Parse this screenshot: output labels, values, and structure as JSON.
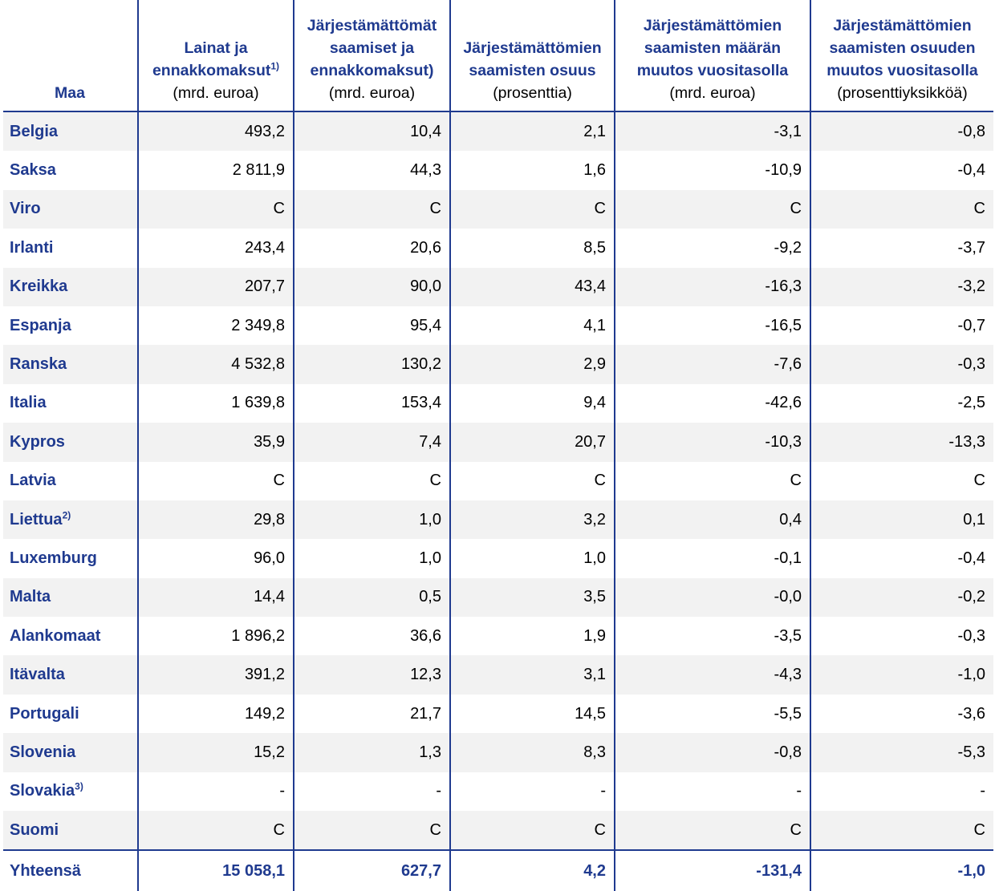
{
  "table": {
    "headers": [
      {
        "title": "Maa",
        "sup": "",
        "unit": ""
      },
      {
        "title": "Lainat ja ennakkomaksut",
        "sup": "1)",
        "unit": "(mrd. euroa)"
      },
      {
        "title": "Järjestämättömät saamiset ja ennakkomaksut)",
        "sup": "",
        "unit": "(mrd. euroa)"
      },
      {
        "title": "Järjestämättömien saamisten osuus",
        "sup": "",
        "unit": "(prosenttia)"
      },
      {
        "title": "Järjestämättömien saamisten määrän muutos vuositasolla",
        "sup": "",
        "unit": "(mrd. euroa)"
      },
      {
        "title": "Järjestämättömien saamisten osuuden muutos vuositasolla",
        "sup": "",
        "unit": "(prosenttiyksikköä)"
      }
    ],
    "rows": [
      {
        "country": "Belgia",
        "sup": "",
        "values": [
          "493,2",
          "10,4",
          "2,1",
          "-3,1",
          "-0,8"
        ]
      },
      {
        "country": "Saksa",
        "sup": "",
        "values": [
          "2 811,9",
          "44,3",
          "1,6",
          "-10,9",
          "-0,4"
        ]
      },
      {
        "country": "Viro",
        "sup": "",
        "values": [
          "C",
          "C",
          "C",
          "C",
          "C"
        ]
      },
      {
        "country": "Irlanti",
        "sup": "",
        "values": [
          "243,4",
          "20,6",
          "8,5",
          "-9,2",
          "-3,7"
        ]
      },
      {
        "country": "Kreikka",
        "sup": "",
        "values": [
          "207,7",
          "90,0",
          "43,4",
          "-16,3",
          "-3,2"
        ]
      },
      {
        "country": "Espanja",
        "sup": "",
        "values": [
          "2 349,8",
          "95,4",
          "4,1",
          "-16,5",
          "-0,7"
        ]
      },
      {
        "country": "Ranska",
        "sup": "",
        "values": [
          "4 532,8",
          "130,2",
          "2,9",
          "-7,6",
          "-0,3"
        ]
      },
      {
        "country": "Italia",
        "sup": "",
        "values": [
          "1 639,8",
          "153,4",
          "9,4",
          "-42,6",
          "-2,5"
        ]
      },
      {
        "country": "Kypros",
        "sup": "",
        "values": [
          "35,9",
          "7,4",
          "20,7",
          "-10,3",
          "-13,3"
        ]
      },
      {
        "country": "Latvia",
        "sup": "",
        "values": [
          "C",
          "C",
          "C",
          "C",
          "C"
        ]
      },
      {
        "country": "Liettua",
        "sup": "2)",
        "values": [
          "29,8",
          "1,0",
          "3,2",
          "0,4",
          "0,1"
        ]
      },
      {
        "country": "Luxemburg",
        "sup": "",
        "values": [
          "96,0",
          "1,0",
          "1,0",
          "-0,1",
          "-0,4"
        ]
      },
      {
        "country": "Malta",
        "sup": "",
        "values": [
          "14,4",
          "0,5",
          "3,5",
          "-0,0",
          "-0,2"
        ]
      },
      {
        "country": "Alankomaat",
        "sup": "",
        "values": [
          "1 896,2",
          "36,6",
          "1,9",
          "-3,5",
          "-0,3"
        ]
      },
      {
        "country": "Itävalta",
        "sup": "",
        "values": [
          "391,2",
          "12,3",
          "3,1",
          "-4,3",
          "-1,0"
        ]
      },
      {
        "country": "Portugali",
        "sup": "",
        "values": [
          "149,2",
          "21,7",
          "14,5",
          "-5,5",
          "-3,6"
        ]
      },
      {
        "country": "Slovenia",
        "sup": "",
        "values": [
          "15,2",
          "1,3",
          "8,3",
          "-0,8",
          "-5,3"
        ]
      },
      {
        "country": "Slovakia",
        "sup": "3)",
        "values": [
          "-",
          "-",
          "-",
          "-",
          "-"
        ]
      },
      {
        "country": "Suomi",
        "sup": "",
        "values": [
          "C",
          "C",
          "C",
          "C",
          "C"
        ]
      }
    ],
    "total": {
      "country": "Yhteensä",
      "values": [
        "15 058,1",
        "627,7",
        "4,2",
        "-131,4",
        "-1,0"
      ]
    }
  },
  "colors": {
    "accent": "#1f3a8f",
    "row_shade": "#f2f2f2"
  }
}
